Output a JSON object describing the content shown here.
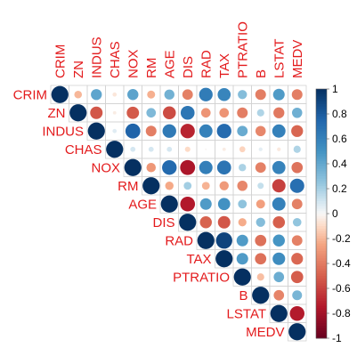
{
  "chart_data": {
    "type": "heatmap",
    "style": "correlation-matrix-circles-upper-triangle",
    "title": "",
    "variables": [
      "CRIM",
      "ZN",
      "INDUS",
      "CHAS",
      "NOX",
      "RM",
      "AGE",
      "DIS",
      "RAD",
      "TAX",
      "PTRATIO",
      "B",
      "LSTAT",
      "MEDV"
    ],
    "matrix": [
      [
        1.0,
        -0.2,
        0.41,
        -0.06,
        0.42,
        -0.22,
        0.35,
        -0.38,
        0.63,
        0.58,
        0.29,
        -0.39,
        0.46,
        -0.39
      ],
      [
        -0.2,
        1.0,
        -0.53,
        -0.04,
        -0.52,
        0.31,
        -0.57,
        0.66,
        -0.31,
        -0.31,
        -0.39,
        0.18,
        -0.41,
        0.36
      ],
      [
        0.41,
        -0.53,
        1.0,
        0.06,
        0.76,
        -0.39,
        0.64,
        -0.71,
        0.6,
        0.72,
        0.38,
        -0.36,
        0.6,
        -0.48
      ],
      [
        -0.06,
        -0.04,
        0.06,
        1.0,
        0.09,
        0.09,
        0.09,
        -0.1,
        -0.01,
        -0.04,
        -0.12,
        0.05,
        -0.05,
        0.18
      ],
      [
        0.42,
        -0.52,
        0.76,
        0.09,
        1.0,
        -0.3,
        0.73,
        -0.77,
        0.61,
        0.67,
        0.19,
        -0.38,
        0.59,
        -0.43
      ],
      [
        -0.22,
        0.31,
        -0.39,
        0.09,
        -0.3,
        1.0,
        -0.24,
        0.21,
        -0.21,
        -0.29,
        -0.36,
        0.13,
        -0.61,
        0.7
      ],
      [
        0.35,
        -0.57,
        0.64,
        0.09,
        0.73,
        -0.24,
        1.0,
        -0.75,
        0.46,
        0.51,
        0.26,
        -0.27,
        0.6,
        -0.38
      ],
      [
        -0.38,
        0.66,
        -0.71,
        -0.1,
        -0.77,
        0.21,
        -0.75,
        1.0,
        -0.49,
        -0.53,
        -0.23,
        0.29,
        -0.5,
        0.25
      ],
      [
        0.63,
        -0.31,
        0.6,
        -0.01,
        0.61,
        -0.21,
        0.46,
        -0.49,
        1.0,
        0.91,
        0.46,
        -0.44,
        0.49,
        -0.38
      ],
      [
        0.58,
        -0.31,
        0.72,
        -0.04,
        0.67,
        -0.29,
        0.51,
        -0.53,
        0.91,
        1.0,
        0.46,
        -0.44,
        0.54,
        -0.47
      ],
      [
        0.29,
        -0.39,
        0.38,
        -0.12,
        0.19,
        -0.36,
        0.26,
        -0.23,
        0.46,
        0.46,
        1.0,
        -0.18,
        0.37,
        -0.51
      ],
      [
        -0.39,
        0.18,
        -0.36,
        0.05,
        -0.38,
        0.13,
        -0.27,
        0.29,
        -0.44,
        -0.44,
        -0.18,
        1.0,
        -0.37,
        0.33
      ],
      [
        0.46,
        -0.41,
        0.6,
        -0.05,
        0.59,
        -0.61,
        0.6,
        -0.5,
        0.49,
        0.54,
        0.37,
        -0.37,
        1.0,
        -0.74
      ],
      [
        -0.39,
        0.36,
        -0.48,
        0.18,
        -0.43,
        0.7,
        -0.38,
        0.25,
        -0.38,
        -0.47,
        -0.51,
        0.33,
        -0.74,
        1.0
      ]
    ],
    "colorbar": {
      "range": [
        -1,
        1
      ],
      "ticks": [
        "1",
        "0.8",
        "0.6",
        "0.4",
        "0.2",
        "0",
        "-0.2",
        "-0.4",
        "-0.6",
        "-0.8",
        "-1"
      ],
      "low_color": "#67001f",
      "mid_color": "#f7f7f7",
      "high_color": "#053061"
    },
    "label_color": "#e31a1c",
    "grid": true,
    "legend_placement": "right"
  }
}
